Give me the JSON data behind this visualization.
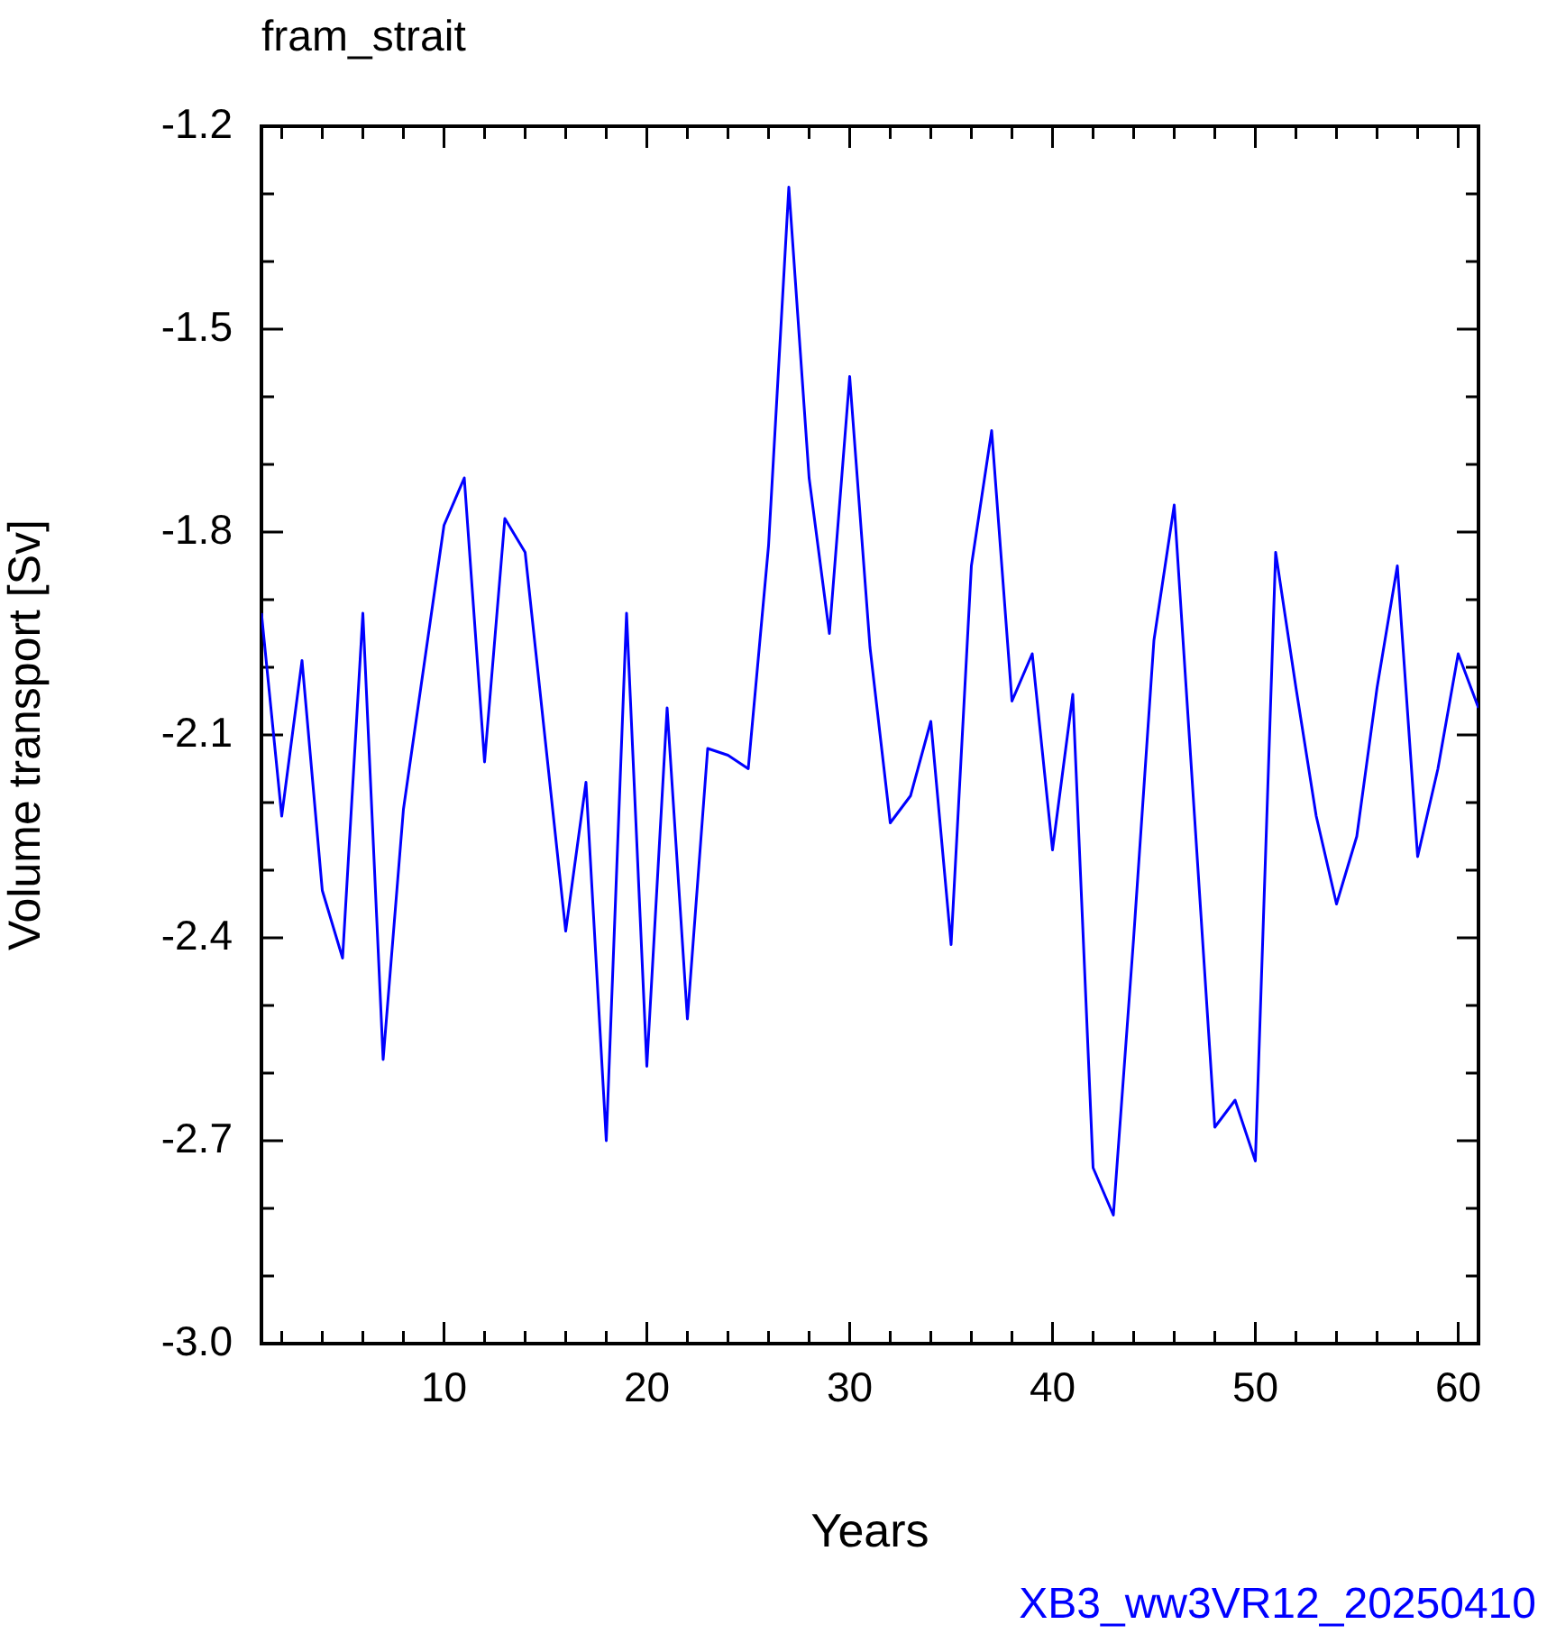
{
  "chart_data": {
    "type": "line",
    "title": "fram_strait",
    "xlabel": "Years",
    "ylabel": "Volume transport [Sv]",
    "annotations": [
      "XB3_ww3VR12_20250410"
    ],
    "x": [
      1,
      2,
      3,
      4,
      5,
      6,
      7,
      8,
      9,
      10,
      11,
      12,
      13,
      14,
      15,
      16,
      17,
      18,
      19,
      20,
      21,
      22,
      23,
      24,
      25,
      26,
      27,
      28,
      29,
      30,
      31,
      32,
      33,
      34,
      35,
      36,
      37,
      38,
      39,
      40,
      41,
      42,
      43,
      44,
      45,
      46,
      47,
      48,
      49,
      50,
      51,
      52,
      53,
      54,
      55,
      56,
      57,
      58,
      59,
      60,
      61
    ],
    "values": [
      -1.92,
      -2.22,
      -1.99,
      -2.33,
      -2.43,
      -1.92,
      -2.58,
      -2.21,
      -2.0,
      -1.79,
      -1.72,
      -2.14,
      -1.78,
      -1.83,
      -2.11,
      -2.39,
      -2.17,
      -2.7,
      -1.92,
      -2.59,
      -2.06,
      -2.52,
      -2.12,
      -2.13,
      -2.15,
      -1.82,
      -1.29,
      -1.72,
      -1.95,
      -1.57,
      -1.97,
      -2.23,
      -2.19,
      -2.08,
      -2.41,
      -1.85,
      -1.65,
      -2.05,
      -1.98,
      -2.27,
      -2.04,
      -2.74,
      -2.81,
      -2.4,
      -1.96,
      -1.76,
      -2.22,
      -2.68,
      -2.64,
      -2.73,
      -1.83,
      -2.03,
      -2.22,
      -2.35,
      -2.25,
      -2.03,
      -1.85,
      -2.28,
      -2.15,
      -1.98,
      -2.06
    ],
    "color": "#0000ff",
    "marker": "none",
    "line_style": "solid",
    "xlim": [
      1,
      61
    ],
    "xticks": [
      {
        "value": 2,
        "label": null
      },
      {
        "value": 4,
        "label": null
      },
      {
        "value": 6,
        "label": null
      },
      {
        "value": 8,
        "label": null
      },
      10,
      {
        "value": 12,
        "label": null
      },
      {
        "value": 14,
        "label": null
      },
      {
        "value": 16,
        "label": null
      },
      {
        "value": 18,
        "label": null
      },
      20,
      {
        "value": 22,
        "label": null
      },
      {
        "value": 24,
        "label": null
      },
      {
        "value": 26,
        "label": null
      },
      {
        "value": 28,
        "label": null
      },
      30,
      {
        "value": 32,
        "label": null
      },
      {
        "value": 34,
        "label": null
      },
      {
        "value": 36,
        "label": null
      },
      {
        "value": 38,
        "label": null
      },
      40,
      {
        "value": 42,
        "label": null
      },
      {
        "value": 44,
        "label": null
      },
      {
        "value": 46,
        "label": null
      },
      {
        "value": 48,
        "label": null
      },
      50,
      {
        "value": 52,
        "label": null
      },
      {
        "value": 54,
        "label": null
      },
      {
        "value": 56,
        "label": null
      },
      {
        "value": 58,
        "label": null
      },
      60
    ],
    "ylim": [
      -3.0,
      -1.2
    ],
    "yticks": [
      {
        "value": -3.0,
        "label": "-3.0"
      },
      {
        "value": -2.9,
        "label": null
      },
      {
        "value": -2.8,
        "label": null
      },
      -2.7,
      {
        "value": -2.6,
        "label": null
      },
      {
        "value": -2.5,
        "label": null
      },
      -2.4,
      {
        "value": -2.3,
        "label": null
      },
      {
        "value": -2.2,
        "label": null
      },
      -2.1,
      {
        "value": -2.0,
        "label": null
      },
      {
        "value": -1.9,
        "label": null
      },
      -1.8,
      {
        "value": -1.7,
        "label": null
      },
      {
        "value": -1.6,
        "label": null
      },
      -1.5,
      {
        "value": -1.4,
        "label": null
      },
      {
        "value": -1.3,
        "label": null
      },
      -1.2
    ]
  }
}
